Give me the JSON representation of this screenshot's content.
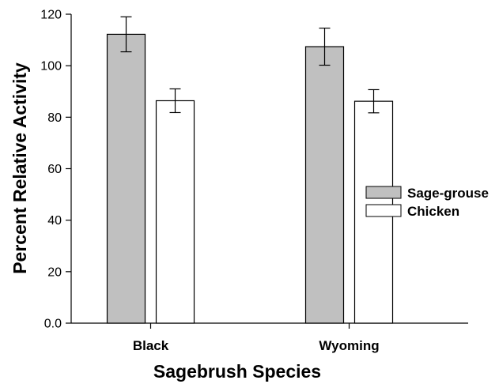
{
  "chart_data": {
    "type": "bar",
    "xlabel": "Sagebrush Species",
    "ylabel": "Percent Relative Activity",
    "categories": [
      "Black",
      "Wyoming"
    ],
    "ylim": [
      0,
      120
    ],
    "yticks": [
      "0.0",
      "20",
      "40",
      "60",
      "80",
      "100",
      "120"
    ],
    "series": [
      {
        "name": "Sage-grouse",
        "color": "#c0c0c0",
        "values": [
          112.2,
          107.4
        ],
        "error": [
          6.8,
          7.2
        ]
      },
      {
        "name": "Chicken",
        "color": "#ffffff",
        "values": [
          86.4,
          86.2
        ],
        "error": [
          4.6,
          4.5
        ]
      }
    ],
    "legend_position": "right",
    "error_bars": true,
    "grid": false
  }
}
